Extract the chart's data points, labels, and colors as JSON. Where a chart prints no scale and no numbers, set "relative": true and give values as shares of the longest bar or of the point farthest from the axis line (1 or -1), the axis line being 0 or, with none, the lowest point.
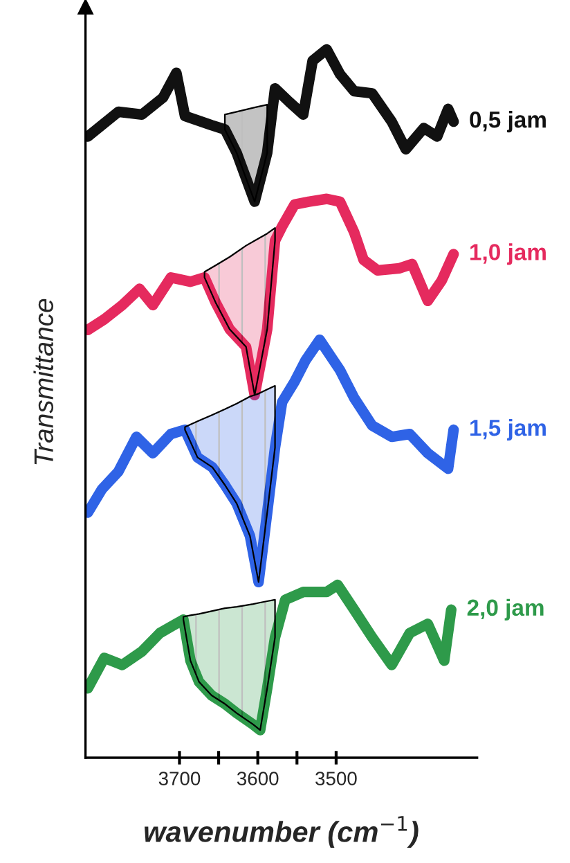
{
  "chart_data": {
    "type": "line",
    "relative": true,
    "xlabel": "wavenumber (cm$^{−1}$)",
    "ylabel": "Transmittance",
    "xlim": [
      3820,
      3320
    ],
    "xticks": [
      3700,
      {
        "value": 3650,
        "label": null
      },
      3600,
      {
        "value": 3550,
        "label": null
      },
      3500
    ],
    "tick_labels": "x",
    "grid": false,
    "legend": false,
    "series": [
      {
        "name": "0,5 jam",
        "color": "#111111",
        "x": [
          3817,
          3778,
          3748,
          3721,
          3704,
          3693,
          3659,
          3642,
          3627,
          3604,
          3588,
          3578,
          3560,
          3542,
          3530,
          3512,
          3495,
          3477,
          3454,
          3429,
          3411,
          3388,
          3371,
          3357,
          3350
        ],
        "values": [
          0.877,
          0.912,
          0.908,
          0.932,
          0.967,
          0.906,
          0.893,
          0.887,
          0.854,
          0.785,
          0.854,
          0.945,
          0.926,
          0.908,
          0.984,
          1.0,
          0.965,
          0.941,
          0.938,
          0.898,
          0.859,
          0.889,
          0.877,
          0.916,
          0.898
        ],
        "upper": [
          null,
          null,
          null,
          null,
          null,
          null,
          null,
          0.908,
          0.912,
          0.918,
          0.922,
          null,
          null,
          null,
          null,
          null,
          null,
          null,
          null,
          null,
          null,
          null,
          null,
          null,
          null
        ],
        "lower": [
          null,
          null,
          null,
          null,
          null,
          null,
          null,
          0.887,
          0.854,
          0.785,
          0.854,
          null,
          null,
          null,
          null,
          null,
          null,
          null,
          null,
          null,
          null,
          null,
          null,
          null,
          null
        ]
      },
      {
        "name": "1,0 jam",
        "color": "#e52a5e",
        "x": [
          3817,
          3796,
          3773,
          3751,
          3734,
          3711,
          3686,
          3668,
          3654,
          3636,
          3615,
          3604,
          3588,
          3578,
          3569,
          3553,
          3535,
          3512,
          3495,
          3477,
          3465,
          3447,
          3419,
          3403,
          3383,
          3365,
          3350
        ],
        "values": [
          0.604,
          0.619,
          0.639,
          0.662,
          0.639,
          0.678,
          0.672,
          0.678,
          0.643,
          0.605,
          0.58,
          0.512,
          0.605,
          0.73,
          0.75,
          0.781,
          0.785,
          0.789,
          0.785,
          0.742,
          0.703,
          0.688,
          0.691,
          0.697,
          0.645,
          0.674,
          0.711
        ],
        "upper": [
          null,
          null,
          null,
          null,
          null,
          null,
          null,
          0.686,
          0.695,
          0.707,
          0.723,
          0.73,
          0.74,
          0.748,
          null,
          null,
          null,
          null,
          null,
          null,
          null,
          null,
          null,
          null,
          null,
          null,
          null
        ],
        "lower": [
          null,
          null,
          null,
          null,
          null,
          null,
          null,
          0.678,
          0.643,
          0.605,
          0.58,
          0.512,
          0.605,
          0.73,
          null,
          null,
          null,
          null,
          null,
          null,
          null,
          null,
          null,
          null,
          null,
          null,
          null
        ]
      },
      {
        "name": "1,5 jam",
        "color": "#2f63e6",
        "x": [
          3817,
          3799,
          3778,
          3755,
          3734,
          3711,
          3693,
          3677,
          3658,
          3642,
          3627,
          3610,
          3599,
          3588,
          3578,
          3569,
          3553,
          3539,
          3521,
          3495,
          3477,
          3454,
          3429,
          3406,
          3383,
          3357,
          3350
        ],
        "values": [
          0.346,
          0.379,
          0.404,
          0.453,
          0.43,
          0.457,
          0.463,
          0.424,
          0.41,
          0.385,
          0.359,
          0.313,
          0.248,
          0.346,
          0.438,
          0.502,
          0.531,
          0.561,
          0.59,
          0.547,
          0.508,
          0.469,
          0.453,
          0.457,
          0.43,
          0.408,
          0.463
        ],
        "upper": [
          null,
          null,
          null,
          null,
          null,
          null,
          0.467,
          0.475,
          0.484,
          0.492,
          0.5,
          0.51,
          0.514,
          0.52,
          0.525,
          null,
          null,
          null,
          null,
          null,
          null,
          null,
          null,
          null,
          null,
          null,
          null
        ],
        "lower": [
          null,
          null,
          null,
          null,
          null,
          null,
          0.463,
          0.424,
          0.41,
          0.385,
          0.359,
          0.313,
          0.248,
          0.346,
          0.438,
          null,
          null,
          null,
          null,
          null,
          null,
          null,
          null,
          null,
          null,
          null,
          null
        ]
      },
      {
        "name": "2,0 jam",
        "color": "#2e9a4a",
        "x": [
          3817,
          3796,
          3773,
          3748,
          3725,
          3695,
          3686,
          3675,
          3659,
          3642,
          3627,
          3606,
          3597,
          3588,
          3578,
          3565,
          3542,
          3512,
          3498,
          3477,
          3454,
          3429,
          3406,
          3383,
          3362,
          3353
        ],
        "values": [
          0.098,
          0.141,
          0.131,
          0.15,
          0.176,
          0.195,
          0.137,
          0.107,
          0.088,
          0.076,
          0.063,
          0.047,
          0.039,
          0.098,
          0.17,
          0.223,
          0.234,
          0.234,
          0.244,
          0.209,
          0.17,
          0.131,
          0.176,
          0.189,
          0.137,
          0.209
        ],
        "upper": [
          null,
          null,
          null,
          null,
          null,
          0.199,
          0.201,
          0.203,
          0.207,
          0.211,
          0.213,
          0.217,
          0.219,
          0.221,
          0.223,
          null,
          null,
          null,
          null,
          null,
          null,
          null,
          null,
          null,
          null,
          null
        ],
        "lower": [
          null,
          null,
          null,
          null,
          null,
          0.195,
          0.137,
          0.107,
          0.088,
          0.076,
          0.063,
          0.047,
          0.039,
          0.098,
          0.17,
          null,
          null,
          null,
          null,
          null,
          null,
          null,
          null,
          null,
          null,
          null
        ]
      }
    ]
  }
}
